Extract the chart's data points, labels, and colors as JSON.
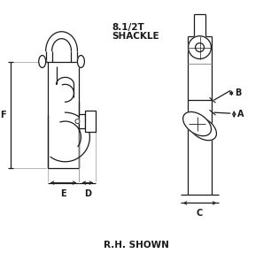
{
  "bg_color": "#ffffff",
  "line_color": "#1a1a1a",
  "gray_line_color": "#999999",
  "title_line1": "8.1/2T",
  "title_line2": "SHACKLE",
  "bottom_label": "R.H. SHOWN",
  "font_size_title": 7.5,
  "font_size_dim": 7,
  "font_size_bottom": 7.5,
  "lw": 0.9
}
